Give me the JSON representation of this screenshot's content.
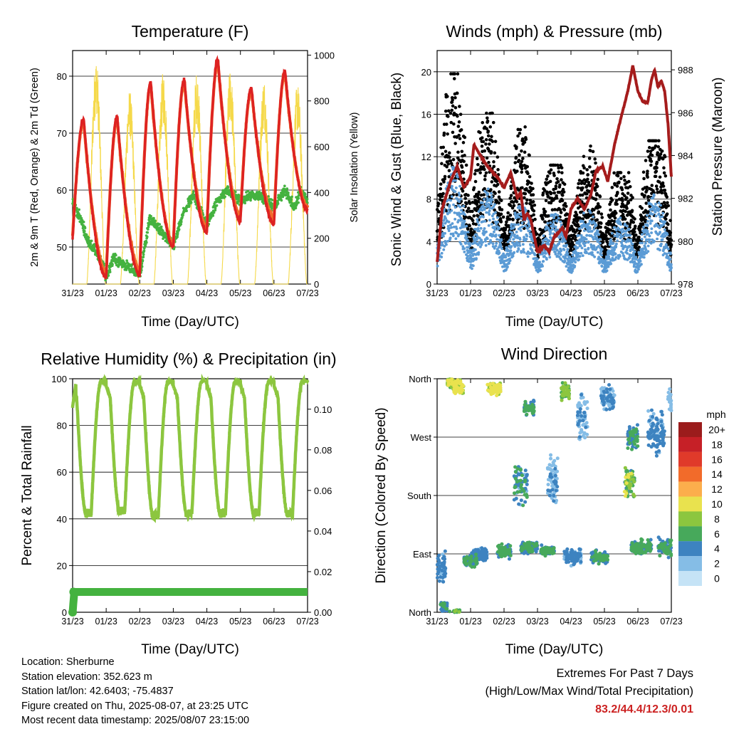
{
  "chart_data": [
    {
      "type": "line",
      "title": "Temperature (F)",
      "xlabel": "Time (Day/UTC)",
      "ylabel": "2m & 9m T (Red, Orange) & 2m Td (Green)",
      "y2label": "Solar Insolation (Yellow)",
      "x_ticks": [
        "31/23",
        "01/23",
        "02/23",
        "03/23",
        "04/23",
        "05/23",
        "06/23",
        "07/23"
      ],
      "xlim_days": [
        0,
        7
      ],
      "ylim": [
        43.5,
        84.5
      ],
      "y_ticks": [
        50,
        60,
        70,
        80
      ],
      "y2lim": [
        0,
        1020
      ],
      "y2_ticks": [
        0,
        200,
        400,
        600,
        800,
        1000
      ],
      "grid": "horizontal",
      "colors": {
        "t2m": "#dd2222",
        "t9m": "#f26b2a",
        "td2m": "#44b23f",
        "solar": "#f5d94a"
      },
      "series": [
        {
          "name": "2m T",
          "daily_max": [
            72.5,
            73.0,
            79.0,
            79.5,
            83.0,
            78.0,
            81.0
          ],
          "daily_min": [
            51.5,
            44.5,
            45.0,
            50.0,
            52.5,
            54.5,
            54.0,
            56.5
          ]
        },
        {
          "name": "9m T",
          "daily_max": [
            72.0,
            72.5,
            78.5,
            79.0,
            82.5,
            77.5,
            80.5
          ],
          "daily_min": [
            52.0,
            45.5,
            46.0,
            50.5,
            53.5,
            55.5,
            55.0,
            57.0
          ]
        },
        {
          "name": "2m Td",
          "keypoints": [
            [
              0,
              58
            ],
            [
              0.3,
              54
            ],
            [
              0.45,
              51
            ],
            [
              0.6,
              50
            ],
            [
              0.8,
              48
            ],
            [
              0.95,
              46
            ],
            [
              1.0,
              44.5
            ],
            [
              1.2,
              48
            ],
            [
              1.5,
              47
            ],
            [
              1.8,
              46
            ],
            [
              2.0,
              45
            ],
            [
              2.3,
              55
            ],
            [
              2.6,
              53
            ],
            [
              3.0,
              50
            ],
            [
              3.3,
              56
            ],
            [
              3.6,
              59
            ],
            [
              4.0,
              54
            ],
            [
              4.3,
              58
            ],
            [
              4.6,
              60
            ],
            [
              5.0,
              58
            ],
            [
              5.3,
              59
            ],
            [
              5.6,
              59
            ],
            [
              6.0,
              57
            ],
            [
              6.3,
              60
            ],
            [
              6.6,
              57
            ],
            [
              6.8,
              60
            ],
            [
              7.0,
              58
            ]
          ]
        },
        {
          "name": "Solar",
          "daily_peak": [
            990,
            850,
            930,
            930,
            940,
            900,
            880
          ]
        }
      ]
    },
    {
      "type": "scatter",
      "title": "Winds (mph) & Pressure (mb)",
      "xlabel": "Time (Day/UTC)",
      "ylabel": "Sonic Wind & Gust (Blue, Black)",
      "y2label": "Station Pressure (Maroon)",
      "x_ticks": [
        "31/23",
        "01/23",
        "02/23",
        "03/23",
        "04/23",
        "05/23",
        "06/23",
        "07/23"
      ],
      "ylim": [
        0,
        22
      ],
      "y_ticks": [
        0,
        4,
        8,
        12,
        16,
        20
      ],
      "y2lim": [
        978,
        988.9
      ],
      "y2_ticks": [
        978,
        980,
        982,
        984,
        986,
        988
      ],
      "grid": "horizontal",
      "colors": {
        "wind": "#5b9bd5",
        "gust": "#000000",
        "pressure": "#a51c1c"
      },
      "series": [
        {
          "name": "Sonic Wind",
          "daily_max": [
            12.3,
            10.0,
            8.5,
            7.5,
            8.0,
            7.0,
            9.5,
            9.0
          ]
        },
        {
          "name": "Gust",
          "daily_max": [
            19.8,
            16.1,
            15.6,
            11.2,
            13.0,
            10.5,
            13.5,
            16.0
          ]
        },
        {
          "name": "Station Pressure",
          "keypoints": [
            [
              0,
              979
            ],
            [
              0.15,
              981.5
            ],
            [
              0.4,
              982.8
            ],
            [
              0.6,
              983.5
            ],
            [
              0.8,
              982.5
            ],
            [
              1.0,
              983.0
            ],
            [
              1.1,
              984.5
            ],
            [
              1.3,
              984.0
            ],
            [
              1.5,
              983.5
            ],
            [
              1.8,
              983.0
            ],
            [
              2.0,
              982.5
            ],
            [
              2.2,
              983.2
            ],
            [
              2.4,
              982.0
            ],
            [
              2.5,
              982.3
            ],
            [
              2.6,
              981.0
            ],
            [
              2.7,
              981.3
            ],
            [
              2.8,
              981.0
            ],
            [
              3.0,
              979.5
            ],
            [
              3.2,
              979.8
            ],
            [
              3.35,
              979.5
            ],
            [
              3.5,
              980.2
            ],
            [
              3.75,
              980.6
            ],
            [
              3.85,
              980.2
            ],
            [
              4.0,
              981.5
            ],
            [
              4.2,
              982.0
            ],
            [
              4.4,
              981.5
            ],
            [
              4.6,
              982.2
            ],
            [
              4.75,
              983.3
            ],
            [
              4.95,
              983.5
            ],
            [
              5.1,
              982.8
            ],
            [
              5.3,
              984.5
            ],
            [
              5.5,
              985.8
            ],
            [
              5.7,
              987.0
            ],
            [
              5.85,
              988.2
            ],
            [
              6.0,
              987.0
            ],
            [
              6.15,
              986.5
            ],
            [
              6.3,
              986.5
            ],
            [
              6.4,
              987.5
            ],
            [
              6.5,
              988.0
            ],
            [
              6.6,
              987.2
            ],
            [
              6.7,
              987.5
            ],
            [
              6.8,
              987.0
            ],
            [
              6.9,
              985.5
            ],
            [
              7.0,
              983.0
            ]
          ]
        }
      ]
    },
    {
      "type": "line",
      "title": "Relative Humidity (%) & Precipitation (in)",
      "xlabel": "Time (Day/UTC)",
      "ylabel": "Percent & Total Rainfall",
      "x_ticks": [
        "31/23",
        "01/23",
        "02/23",
        "03/23",
        "04/23",
        "05/23",
        "06/23",
        "07/23"
      ],
      "ylim": [
        0,
        100
      ],
      "y_ticks": [
        0,
        20,
        40,
        60,
        80,
        100
      ],
      "y2lim": [
        0,
        0.115
      ],
      "y2_ticks": [
        "0.00",
        "0.02",
        "0.04",
        "0.06",
        "0.08",
        "0.10"
      ],
      "grid": "horizontal",
      "colors": {
        "rh": "#8cc63f",
        "precip": "#44b23f"
      },
      "series": [
        {
          "name": "Relative Humidity",
          "daily_min": [
            41,
            42,
            40,
            41,
            41,
            41,
            41
          ],
          "daily_max": [
            100,
            100,
            100,
            100,
            100,
            100,
            100
          ]
        },
        {
          "name": "Total Rainfall",
          "keypoints": [
            [
              0,
              0.0
            ],
            [
              0.05,
              0.01
            ],
            [
              7.0,
              0.01
            ]
          ]
        }
      ]
    },
    {
      "type": "scatter",
      "title": "Wind Direction",
      "xlabel": "Time (Day/UTC)",
      "ylabel": "Direction (Colored By Speed)",
      "x_ticks": [
        "31/23",
        "01/23",
        "02/23",
        "03/23",
        "04/23",
        "05/23",
        "06/23",
        "07/23"
      ],
      "y_ticks": [
        "North",
        "East",
        "South",
        "West",
        "North"
      ],
      "ylim_deg": [
        0,
        360
      ],
      "grid": "horizontal",
      "colorbar": {
        "title": "mph",
        "labels": [
          "20+",
          "18",
          "16",
          "14",
          "12",
          "10",
          "8",
          "6",
          "4",
          "2",
          "0"
        ],
        "colors": [
          "#9b1c1c",
          "#c62027",
          "#e03a2a",
          "#f26b2a",
          "#fcae4c",
          "#e9e24e",
          "#8cc63f",
          "#47a95b",
          "#3d83c0",
          "#85bde6",
          "#c5e3f6"
        ]
      }
    }
  ],
  "info": {
    "location": "Location: Sherburne",
    "elevation": "Station elevation: 352.623 m",
    "latlon": "Station lat/lon: 42.6403; -75.4837",
    "created": "Figure created on Thu, 2025-08-07, at 23:25 UTC",
    "recent": "Most recent data timestamp: 2025/08/07 23:15:00"
  },
  "extremes": {
    "line1": "Extremes For Past 7 Days",
    "line2": "(High/Low/Max Wind/Total Precipitation)",
    "values": "83.2/44.4/12.3/0.01"
  }
}
